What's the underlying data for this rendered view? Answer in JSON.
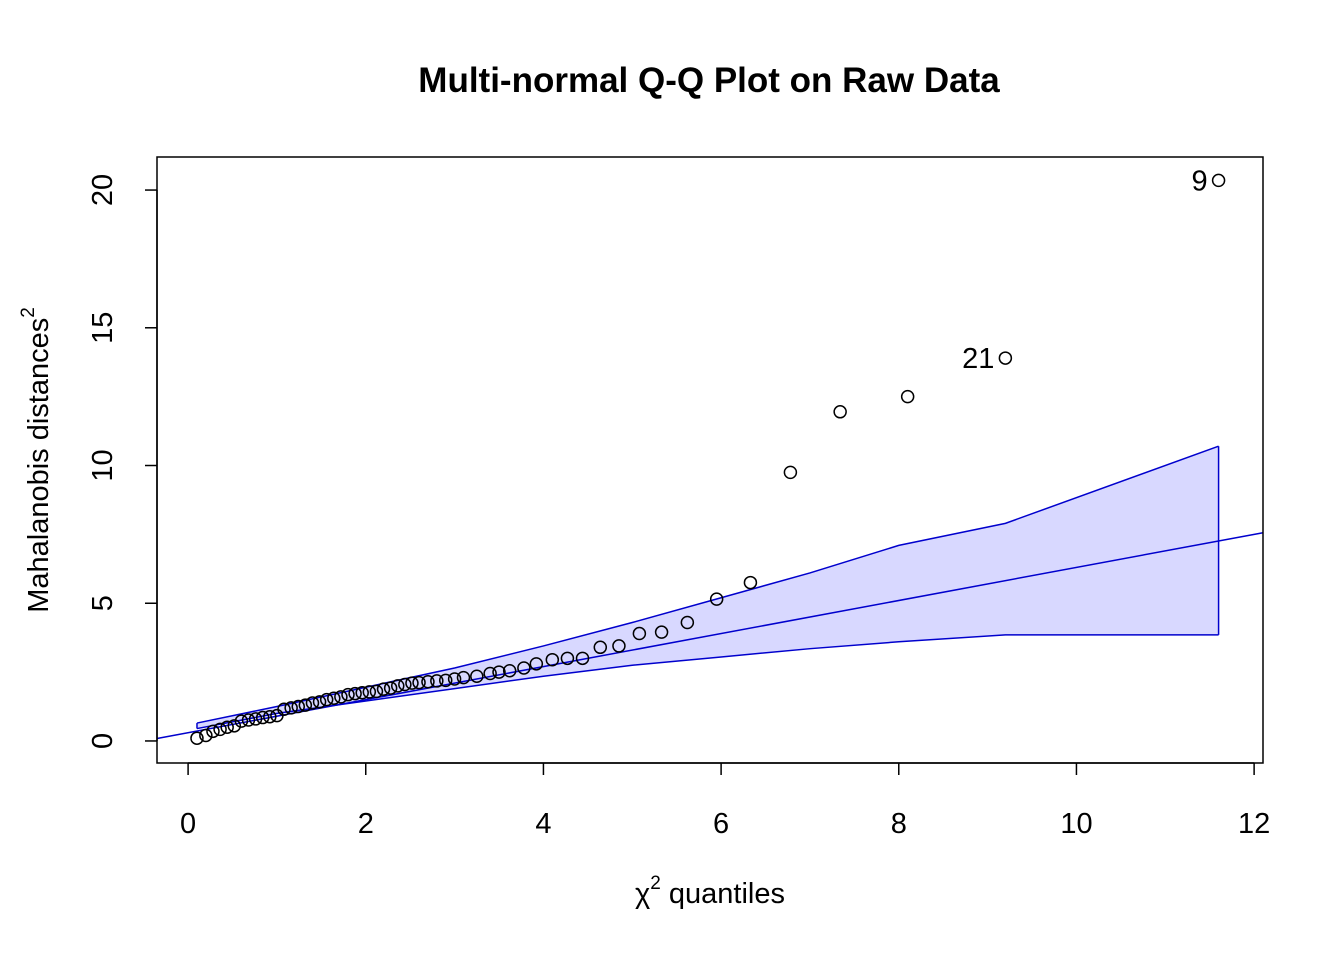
{
  "chart_data": {
    "type": "scatter",
    "title": "Multi-normal Q-Q Plot on Raw Data",
    "xlabel": {
      "symbol": "χ",
      "superscript": "2",
      "text": " quantiles"
    },
    "ylabel": {
      "text": "Mahalanobis distances",
      "superscript": "2"
    },
    "xlim": [
      -0.35,
      12.1
    ],
    "ylim": [
      -0.8,
      21.2
    ],
    "xticks": [
      "0",
      "2",
      "4",
      "6",
      "8",
      "10",
      "12"
    ],
    "yticks": [
      "0",
      "5",
      "10",
      "15",
      "20"
    ],
    "grid": false,
    "reference_line": {
      "intercept": 0.3,
      "slope": 0.6,
      "color": "#0000CD"
    },
    "envelope": {
      "fill": "#D8D8FF",
      "stroke": "#0000CD",
      "x": [
        0.1,
        1.0,
        2.0,
        3.0,
        4.0,
        5.0,
        6.0,
        7.0,
        8.0,
        9.2,
        11.6
      ],
      "upper": [
        0.65,
        1.25,
        1.95,
        2.65,
        3.45,
        4.3,
        5.2,
        6.1,
        7.1,
        7.9,
        10.7
      ],
      "lower": [
        0.45,
        1.0,
        1.45,
        1.9,
        2.35,
        2.75,
        3.05,
        3.35,
        3.6,
        3.85,
        3.85
      ]
    },
    "points": {
      "x": [
        0.1,
        0.2,
        0.28,
        0.36,
        0.44,
        0.52,
        0.6,
        0.68,
        0.76,
        0.84,
        0.92,
        1.0,
        1.08,
        1.16,
        1.24,
        1.32,
        1.4,
        1.48,
        1.56,
        1.64,
        1.72,
        1.8,
        1.88,
        1.96,
        2.04,
        2.12,
        2.2,
        2.28,
        2.36,
        2.44,
        2.52,
        2.6,
        2.7,
        2.8,
        2.9,
        3.0,
        3.1,
        3.25,
        3.4,
        3.5,
        3.62,
        3.78,
        3.92,
        4.1,
        4.27,
        4.44,
        4.64,
        4.85,
        5.08,
        5.33,
        5.62,
        5.95,
        6.33,
        6.78,
        7.34,
        8.1,
        9.2,
        11.6
      ],
      "y": [
        0.1,
        0.2,
        0.35,
        0.42,
        0.5,
        0.55,
        0.72,
        0.76,
        0.8,
        0.85,
        0.88,
        0.92,
        1.15,
        1.2,
        1.25,
        1.3,
        1.38,
        1.42,
        1.5,
        1.55,
        1.6,
        1.68,
        1.72,
        1.75,
        1.78,
        1.8,
        1.88,
        1.92,
        2.0,
        2.05,
        2.1,
        2.12,
        2.15,
        2.18,
        2.2,
        2.25,
        2.3,
        2.35,
        2.45,
        2.5,
        2.55,
        2.65,
        2.8,
        2.95,
        3.0,
        3.0,
        3.4,
        3.45,
        3.9,
        3.95,
        4.3,
        5.15,
        5.75,
        9.75,
        11.95,
        12.5,
        13.9,
        20.35
      ],
      "labels": {
        "56": "21",
        "57": "9"
      }
    }
  }
}
